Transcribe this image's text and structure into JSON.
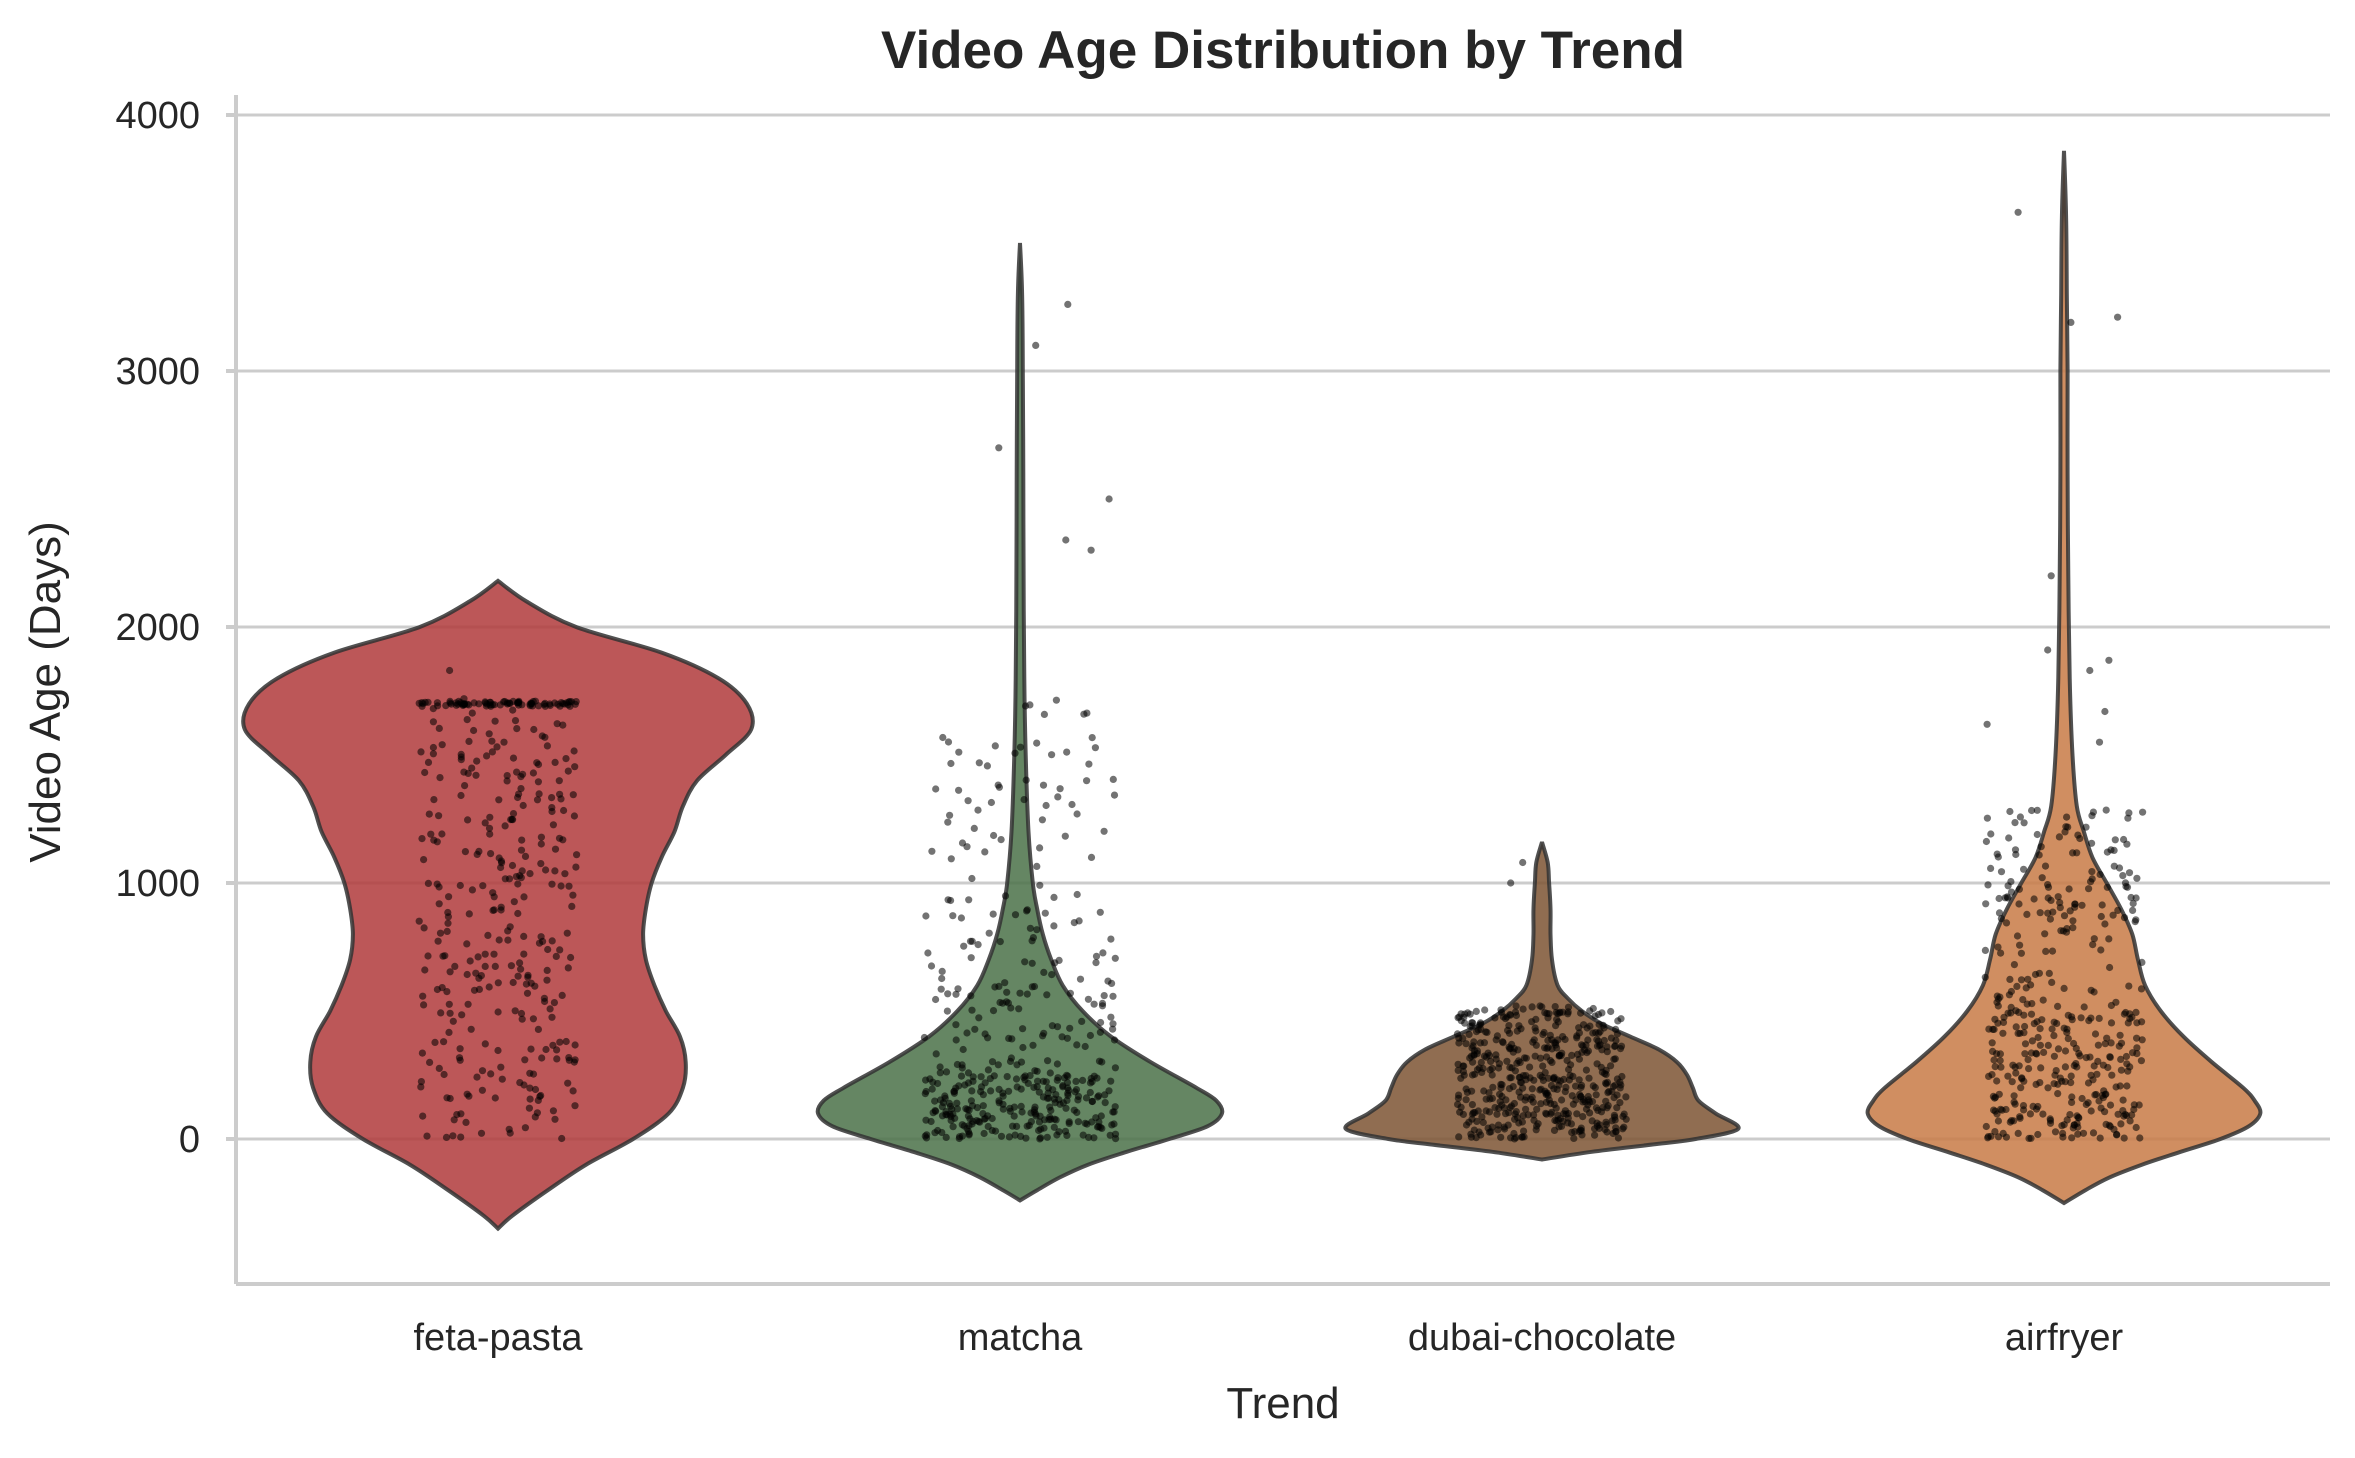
{
  "chart_data": {
    "type": "violin",
    "title": "Video Age Distribution by Trend",
    "xlabel": "Trend",
    "ylabel": "Video Age (Days)",
    "ylim": [
      -560,
      4080
    ],
    "yticks": [
      0,
      1000,
      2000,
      3000,
      4000
    ],
    "yticklabels": [
      "0",
      "1000",
      "2000",
      "3000",
      "4000"
    ],
    "grid": "horizontal",
    "categories": [
      "feta-pasta",
      "matcha",
      "dubai-chocolate",
      "airfryer"
    ],
    "series": [
      {
        "name": "feta-pasta",
        "color": "#b0393b",
        "range_days": [
          -350,
          2180
        ],
        "data_range_days": [
          0,
          1830
        ],
        "profile": [
          [
            -350,
            0
          ],
          [
            -300,
            10
          ],
          [
            -200,
            35
          ],
          [
            -100,
            62
          ],
          [
            0,
            95
          ],
          [
            100,
            120
          ],
          [
            200,
            130
          ],
          [
            300,
            132
          ],
          [
            400,
            128
          ],
          [
            500,
            118
          ],
          [
            600,
            110
          ],
          [
            700,
            104
          ],
          [
            800,
            102
          ],
          [
            900,
            104
          ],
          [
            1000,
            108
          ],
          [
            1100,
            115
          ],
          [
            1200,
            124
          ],
          [
            1300,
            130
          ],
          [
            1400,
            140
          ],
          [
            1500,
            160
          ],
          [
            1600,
            178
          ],
          [
            1700,
            175
          ],
          [
            1800,
            155
          ],
          [
            1900,
            115
          ],
          [
            2000,
            55
          ],
          [
            2100,
            20
          ],
          [
            2180,
            0
          ]
        ]
      },
      {
        "name": "matcha",
        "color": "#4a7148",
        "range_days": [
          -240,
          3500
        ],
        "data_range_days": [
          0,
          3260
        ],
        "profile": [
          [
            -240,
            0
          ],
          [
            -200,
            12
          ],
          [
            -150,
            28
          ],
          [
            -100,
            48
          ],
          [
            -50,
            75
          ],
          [
            0,
            105
          ],
          [
            50,
            132
          ],
          [
            100,
            142
          ],
          [
            150,
            138
          ],
          [
            200,
            124
          ],
          [
            300,
            92
          ],
          [
            400,
            64
          ],
          [
            500,
            44
          ],
          [
            600,
            30
          ],
          [
            700,
            22
          ],
          [
            800,
            16
          ],
          [
            900,
            12
          ],
          [
            1000,
            9
          ],
          [
            1200,
            6
          ],
          [
            1500,
            4
          ],
          [
            1800,
            3
          ],
          [
            2200,
            2.5
          ],
          [
            2600,
            2.3
          ],
          [
            3000,
            2
          ],
          [
            3300,
            1.5
          ],
          [
            3500,
            0
          ]
        ]
      },
      {
        "name": "dubai-chocolate",
        "color": "#7d5432",
        "range_days": [
          -80,
          1160
        ],
        "data_range_days": [
          0,
          1080
        ],
        "profile": [
          [
            -80,
            0
          ],
          [
            -50,
            35
          ],
          [
            -20,
            80
          ],
          [
            0,
            108
          ],
          [
            40,
            138
          ],
          [
            100,
            122
          ],
          [
            150,
            110
          ],
          [
            200,
            106
          ],
          [
            250,
            102
          ],
          [
            300,
            95
          ],
          [
            350,
            82
          ],
          [
            400,
            62
          ],
          [
            450,
            42
          ],
          [
            500,
            28
          ],
          [
            550,
            18
          ],
          [
            600,
            11
          ],
          [
            700,
            7
          ],
          [
            800,
            6
          ],
          [
            900,
            6
          ],
          [
            1000,
            5
          ],
          [
            1080,
            4
          ],
          [
            1160,
            0
          ]
        ]
      },
      {
        "name": "airfryer",
        "color": "#c87a45",
        "range_days": [
          -250,
          3860
        ],
        "data_range_days": [
          0,
          3620
        ],
        "profile": [
          [
            -250,
            0
          ],
          [
            -200,
            15
          ],
          [
            -150,
            32
          ],
          [
            -100,
            55
          ],
          [
            -50,
            82
          ],
          [
            0,
            110
          ],
          [
            50,
            130
          ],
          [
            100,
            138
          ],
          [
            150,
            134
          ],
          [
            200,
            126
          ],
          [
            300,
            104
          ],
          [
            400,
            84
          ],
          [
            500,
            68
          ],
          [
            600,
            57
          ],
          [
            700,
            52
          ],
          [
            800,
            48
          ],
          [
            900,
            40
          ],
          [
            1000,
            30
          ],
          [
            1100,
            20
          ],
          [
            1200,
            14
          ],
          [
            1300,
            9
          ],
          [
            1500,
            6
          ],
          [
            1800,
            4
          ],
          [
            2200,
            3
          ],
          [
            2600,
            2.5
          ],
          [
            3000,
            2.5
          ],
          [
            3300,
            2
          ],
          [
            3600,
            1.5
          ],
          [
            3860,
            0
          ]
        ]
      }
    ],
    "points": {
      "feta-pasta": {
        "count": 380,
        "jitter": 0.14,
        "mix": [
          {
            "w": 0.2,
            "center": 1700,
            "spread": 10
          },
          {
            "w": 0.8,
            "range": [
              0,
              1720
            ]
          }
        ],
        "outliers": [
          1830
        ]
      },
      "matcha": {
        "count": 420,
        "jitter": 0.17,
        "mix": [
          {
            "w": 0.55,
            "range": [
              0,
              250
            ]
          },
          {
            "w": 0.3,
            "range": [
              250,
              900
            ]
          },
          {
            "w": 0.15,
            "range": [
              900,
              1720
            ]
          }
        ],
        "outliers": [
          2300,
          2340,
          2500,
          2700,
          3100,
          3260
        ]
      },
      "dubai-chocolate": {
        "count": 470,
        "jitter": 0.15,
        "mix": [
          {
            "w": 0.8,
            "range": [
              0,
              400
            ]
          },
          {
            "w": 0.2,
            "range": [
              400,
              520
            ]
          }
        ],
        "outliers": [
          1000,
          1080
        ]
      },
      "airfryer": {
        "count": 400,
        "jitter": 0.14,
        "mix": [
          {
            "w": 0.6,
            "range": [
              0,
              500
            ]
          },
          {
            "w": 0.3,
            "range": [
              500,
              1100
            ]
          },
          {
            "w": 0.1,
            "range": [
              1100,
              1300
            ]
          }
        ],
        "outliers": [
          1550,
          1620,
          1670,
          1830,
          1870,
          1910,
          2200,
          3190,
          3210,
          3620
        ]
      }
    }
  },
  "colors": {
    "background": "#ffffff",
    "grid": "#cccccc",
    "text": "#262626",
    "outline": "#333333",
    "points": "#000000"
  }
}
